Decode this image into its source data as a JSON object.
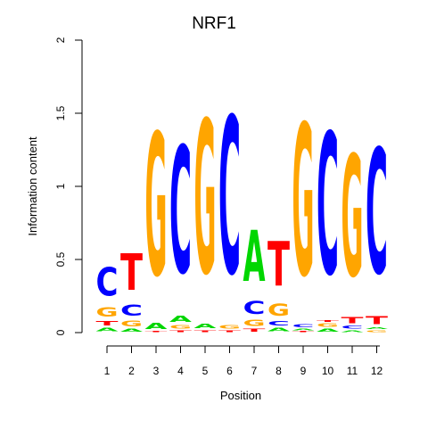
{
  "chart_data": {
    "type": "sequence-logo",
    "title": "NRF1",
    "xlabel": "Position",
    "ylabel": "Information content",
    "ylim": [
      0,
      2
    ],
    "y_ticks": [
      "0",
      "0.5",
      "1",
      "1.5",
      "2"
    ],
    "x_ticks": [
      "1",
      "2",
      "3",
      "4",
      "5",
      "6",
      "7",
      "8",
      "9",
      "10",
      "11",
      "12"
    ],
    "colors": {
      "A": "#00d600",
      "C": "#0000ff",
      "G": "#ffa500",
      "T": "#ff0000"
    },
    "positions": [
      {
        "pos": 1,
        "letters": [
          {
            "base": "A",
            "height": 0.04
          },
          {
            "base": "T",
            "height": 0.05
          },
          {
            "base": "G",
            "height": 0.1
          },
          {
            "base": "C",
            "height": 0.31
          }
        ]
      },
      {
        "pos": 2,
        "letters": [
          {
            "base": "A",
            "height": 0.03
          },
          {
            "base": "G",
            "height": 0.06
          },
          {
            "base": "C",
            "height": 0.12
          },
          {
            "base": "T",
            "height": 0.4
          }
        ]
      },
      {
        "pos": 3,
        "letters": [
          {
            "base": "T",
            "height": 0.01
          },
          {
            "base": "A",
            "height": 0.07
          },
          {
            "base": "G",
            "height": 1.56
          }
        ]
      },
      {
        "pos": 4,
        "letters": [
          {
            "base": "T",
            "height": 0.02
          },
          {
            "base": "G",
            "height": 0.04
          },
          {
            "base": "A",
            "height": 0.07
          },
          {
            "base": "C",
            "height": 1.39
          }
        ]
      },
      {
        "pos": 5,
        "letters": [
          {
            "base": "T",
            "height": 0.02
          },
          {
            "base": "A",
            "height": 0.05
          },
          {
            "base": "G",
            "height": 1.68
          }
        ]
      },
      {
        "pos": 6,
        "letters": [
          {
            "base": "T",
            "height": 0.02
          },
          {
            "base": "G",
            "height": 0.04
          },
          {
            "base": "C",
            "height": 1.72
          }
        ]
      },
      {
        "pos": 7,
        "letters": [
          {
            "base": "T",
            "height": 0.03
          },
          {
            "base": "G",
            "height": 0.07
          },
          {
            "base": "C",
            "height": 0.14
          },
          {
            "base": "A",
            "height": 0.56
          }
        ]
      },
      {
        "pos": 8,
        "letters": [
          {
            "base": "A",
            "height": 0.04
          },
          {
            "base": "C",
            "height": 0.05
          },
          {
            "base": "G",
            "height": 0.13
          },
          {
            "base": "T",
            "height": 0.49
          }
        ]
      },
      {
        "pos": 9,
        "letters": [
          {
            "base": "T",
            "height": 0.01
          },
          {
            "base": "A",
            "height": 0.02
          },
          {
            "base": "C",
            "height": 0.03
          },
          {
            "base": "G",
            "height": 1.66
          }
        ]
      },
      {
        "pos": 10,
        "letters": [
          {
            "base": "A",
            "height": 0.03
          },
          {
            "base": "G",
            "height": 0.04
          },
          {
            "base": "T",
            "height": 0.02
          },
          {
            "base": "C",
            "height": 1.55
          }
        ]
      },
      {
        "pos": 11,
        "letters": [
          {
            "base": "A",
            "height": 0.02
          },
          {
            "base": "C",
            "height": 0.03
          },
          {
            "base": "T",
            "height": 0.07
          },
          {
            "base": "G",
            "height": 1.33
          }
        ]
      },
      {
        "pos": 12,
        "letters": [
          {
            "base": "G",
            "height": 0.02
          },
          {
            "base": "A",
            "height": 0.02
          },
          {
            "base": "T",
            "height": 0.09
          },
          {
            "base": "C",
            "height": 1.37
          }
        ]
      }
    ]
  }
}
